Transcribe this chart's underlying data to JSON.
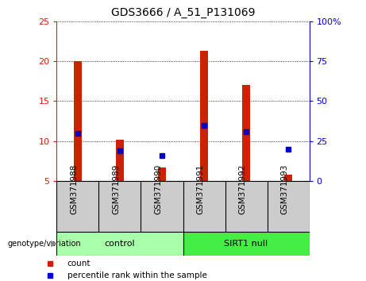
{
  "title": "GDS3666 / A_51_P131069",
  "categories": [
    "GSM371988",
    "GSM371989",
    "GSM371990",
    "GSM371991",
    "GSM371992",
    "GSM371993"
  ],
  "count_values": [
    20.0,
    10.2,
    6.7,
    21.3,
    17.0,
    5.8
  ],
  "count_base": 5,
  "percentile_left_values": [
    11.0,
    8.8,
    8.2,
    12.0,
    11.2,
    9.0
  ],
  "ylim_left": [
    5,
    25
  ],
  "ylim_right": [
    0,
    100
  ],
  "yticks_left": [
    5,
    10,
    15,
    20,
    25
  ],
  "yticks_right": [
    0,
    25,
    50,
    75,
    100
  ],
  "left_tick_labels": [
    "5",
    "10",
    "15",
    "20",
    "25"
  ],
  "right_tick_labels": [
    "0",
    "25",
    "50",
    "75",
    "100%"
  ],
  "left_color": "#cc2200",
  "right_color": "#0000cc",
  "bar_color": "#cc2200",
  "dot_color": "#0000cc",
  "control_label": "control",
  "sirt1_label": "SIRT1 null",
  "control_color": "#aaffaa",
  "sirt1_color": "#44ee44",
  "xlabel_area_color": "#cccccc",
  "genotype_label": "genotype/variation",
  "legend_count": "count",
  "legend_percentile": "percentile rank within the sample",
  "background_color": "#ffffff",
  "bar_width": 0.18
}
